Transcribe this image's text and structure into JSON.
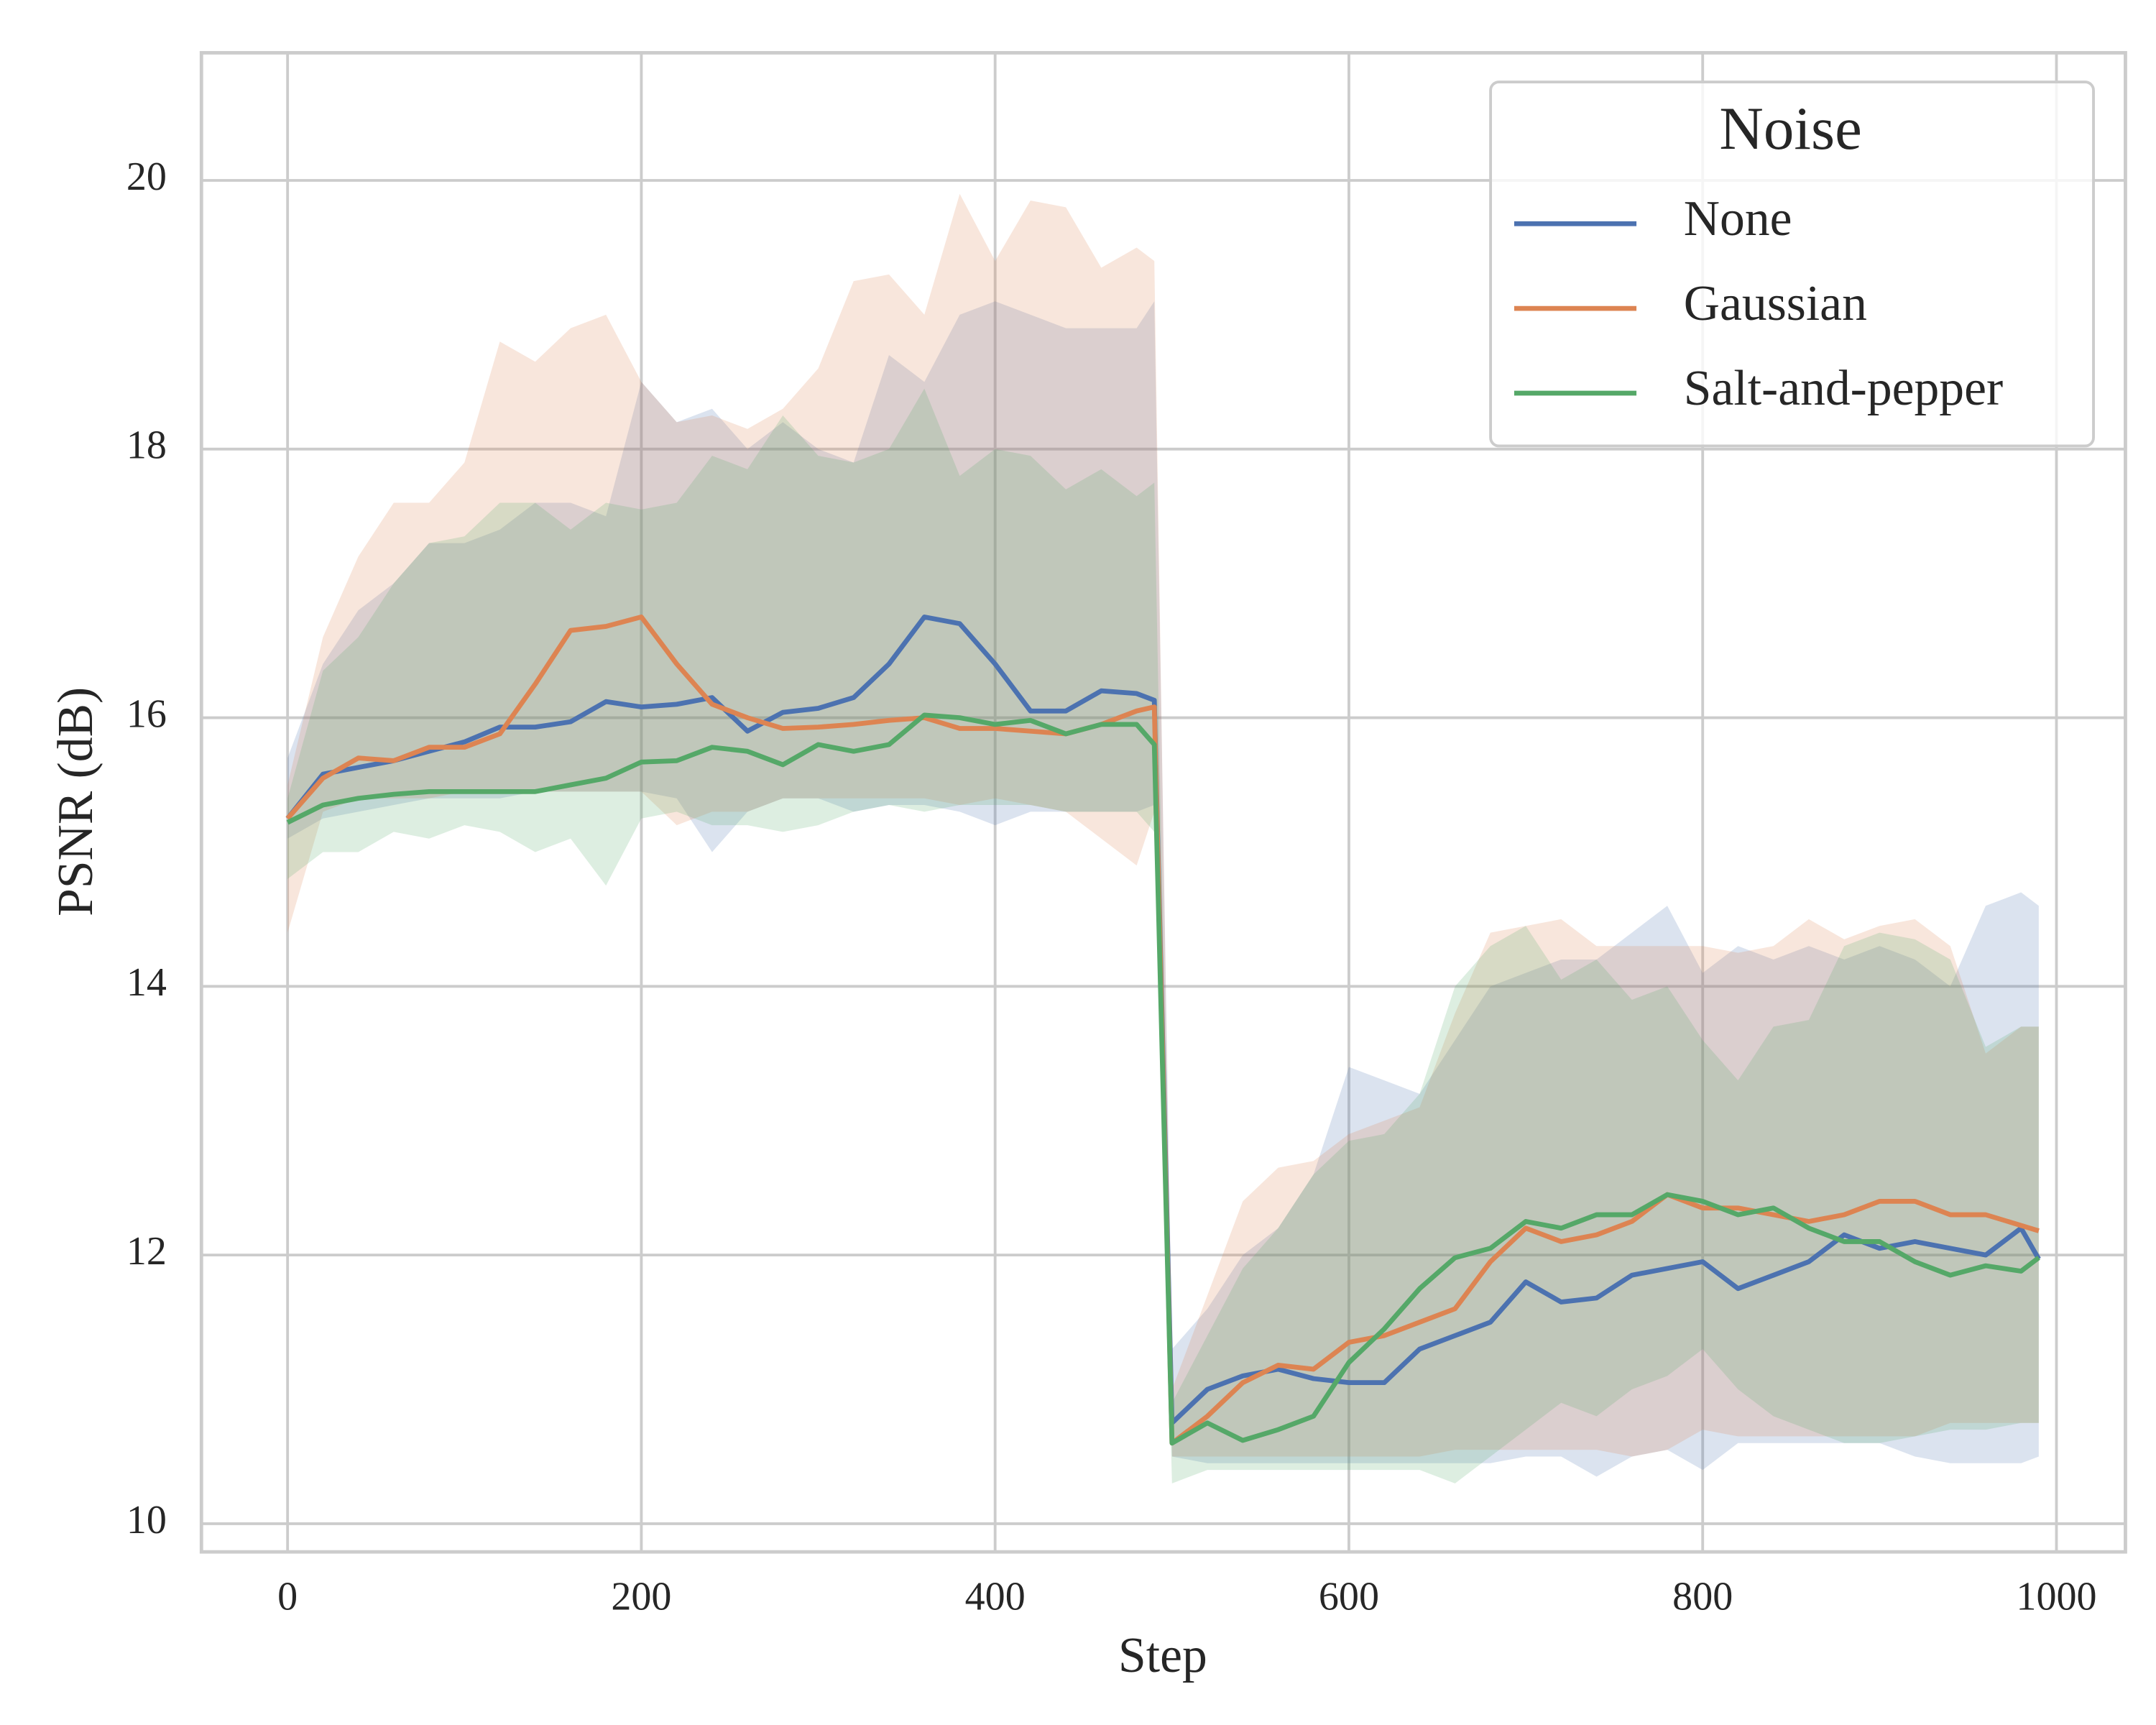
{
  "chart_data": {
    "type": "line",
    "x_label": "Step",
    "y_label": "PSNR (dB)",
    "x": [
      0,
      20,
      40,
      60,
      80,
      100,
      120,
      140,
      160,
      180,
      200,
      220,
      240,
      260,
      280,
      300,
      320,
      340,
      360,
      380,
      400,
      420,
      440,
      460,
      480,
      490,
      500,
      520,
      540,
      560,
      580,
      600,
      620,
      640,
      660,
      680,
      700,
      720,
      740,
      760,
      780,
      800,
      820,
      840,
      860,
      880,
      900,
      920,
      940,
      960,
      980,
      990
    ],
    "xlim": [
      -48.7,
      1039
    ],
    "ylim": [
      9.79,
      20.95
    ],
    "xticks": [
      0,
      200,
      400,
      600,
      800,
      1000
    ],
    "yticks": [
      10,
      12,
      14,
      16,
      18,
      20
    ],
    "grid": true,
    "legend_title": "Noise",
    "legend_position": "upper right",
    "series": [
      {
        "name": "None",
        "color": "#4c72b0",
        "values": [
          15.25,
          15.58,
          15.63,
          15.68,
          15.75,
          15.82,
          15.93,
          15.93,
          15.97,
          16.12,
          16.08,
          16.1,
          16.15,
          15.9,
          16.04,
          16.07,
          16.15,
          16.4,
          16.75,
          16.7,
          16.4,
          16.05,
          16.05,
          16.2,
          16.18,
          16.13,
          10.75,
          11.0,
          11.1,
          11.15,
          11.08,
          11.05,
          11.05,
          11.3,
          11.4,
          11.5,
          11.8,
          11.65,
          11.68,
          11.85,
          11.9,
          11.95,
          11.75,
          11.85,
          11.95,
          12.15,
          12.05,
          12.1,
          12.05,
          12.0,
          12.2,
          11.97
        ],
        "upper": [
          15.7,
          16.4,
          16.8,
          17.0,
          17.3,
          17.3,
          17.4,
          17.6,
          17.6,
          17.5,
          18.5,
          18.2,
          18.3,
          18.0,
          18.2,
          18.0,
          17.9,
          18.7,
          18.5,
          19.0,
          19.1,
          19.0,
          18.9,
          18.9,
          18.9,
          19.1,
          11.3,
          11.6,
          12.0,
          12.2,
          12.6,
          13.4,
          13.3,
          13.2,
          13.6,
          14.0,
          14.1,
          14.2,
          14.2,
          14.4,
          14.6,
          14.1,
          14.3,
          14.2,
          14.3,
          14.2,
          14.3,
          14.2,
          14.0,
          14.6,
          14.7,
          14.6
        ],
        "lower": [
          15.1,
          15.25,
          15.3,
          15.35,
          15.4,
          15.4,
          15.4,
          15.45,
          15.45,
          15.45,
          15.45,
          15.4,
          15.0,
          15.3,
          15.4,
          15.4,
          15.3,
          15.35,
          15.35,
          15.3,
          15.2,
          15.3,
          15.3,
          15.3,
          15.3,
          15.35,
          10.5,
          10.45,
          10.45,
          10.45,
          10.45,
          10.45,
          10.45,
          10.45,
          10.45,
          10.45,
          10.5,
          10.5,
          10.35,
          10.5,
          10.55,
          10.4,
          10.6,
          10.6,
          10.6,
          10.6,
          10.6,
          10.5,
          10.45,
          10.45,
          10.45,
          10.5
        ]
      },
      {
        "name": "Gaussian",
        "color": "#dd8452",
        "values": [
          15.25,
          15.55,
          15.7,
          15.68,
          15.78,
          15.78,
          15.88,
          16.25,
          16.65,
          16.68,
          16.75,
          16.4,
          16.1,
          16.0,
          15.92,
          15.93,
          15.95,
          15.98,
          16.0,
          15.92,
          15.92,
          15.9,
          15.88,
          15.95,
          16.05,
          16.08,
          10.6,
          10.8,
          11.05,
          11.18,
          11.15,
          11.35,
          11.4,
          11.5,
          11.6,
          11.95,
          12.2,
          12.1,
          12.15,
          12.25,
          12.45,
          12.35,
          12.35,
          12.3,
          12.25,
          12.3,
          12.4,
          12.4,
          12.3,
          12.3,
          12.22,
          12.18
        ],
        "upper": [
          15.5,
          16.6,
          17.2,
          17.6,
          17.6,
          17.9,
          18.8,
          18.65,
          18.9,
          19.0,
          18.5,
          18.2,
          18.25,
          18.15,
          18.3,
          18.6,
          19.25,
          19.3,
          19.0,
          19.9,
          19.4,
          19.85,
          19.8,
          19.35,
          19.5,
          19.4,
          11.0,
          11.7,
          12.4,
          12.65,
          12.7,
          12.9,
          13.0,
          13.1,
          13.8,
          14.4,
          14.45,
          14.5,
          14.3,
          14.3,
          14.3,
          14.3,
          14.25,
          14.3,
          14.5,
          14.35,
          14.45,
          14.5,
          14.3,
          13.5,
          13.7,
          13.7
        ],
        "lower": [
          14.4,
          15.3,
          15.4,
          15.4,
          15.4,
          15.45,
          15.45,
          15.45,
          15.45,
          15.45,
          15.45,
          15.2,
          15.3,
          15.3,
          15.4,
          15.4,
          15.4,
          15.4,
          15.4,
          15.35,
          15.4,
          15.35,
          15.3,
          15.1,
          14.9,
          15.3,
          10.5,
          10.5,
          10.5,
          10.5,
          10.5,
          10.5,
          10.5,
          10.5,
          10.55,
          10.55,
          10.55,
          10.55,
          10.55,
          10.5,
          10.55,
          10.7,
          10.65,
          10.65,
          10.65,
          10.65,
          10.65,
          10.65,
          10.75,
          10.75,
          10.75,
          10.75
        ]
      },
      {
        "name": "Salt-and-pepper",
        "color": "#55a868",
        "values": [
          15.22,
          15.35,
          15.4,
          15.43,
          15.45,
          15.45,
          15.45,
          15.45,
          15.5,
          15.55,
          15.67,
          15.68,
          15.78,
          15.75,
          15.65,
          15.8,
          15.75,
          15.8,
          16.02,
          16.0,
          15.95,
          15.98,
          15.88,
          15.95,
          15.95,
          15.8,
          10.6,
          10.75,
          10.62,
          10.7,
          10.8,
          11.2,
          11.45,
          11.75,
          11.98,
          12.05,
          12.25,
          12.2,
          12.3,
          12.3,
          12.45,
          12.4,
          12.3,
          12.35,
          12.2,
          12.1,
          12.1,
          11.95,
          11.85,
          11.92,
          11.88,
          11.98
        ],
        "upper": [
          15.4,
          16.35,
          16.6,
          17.0,
          17.3,
          17.35,
          17.6,
          17.6,
          17.4,
          17.6,
          17.55,
          17.6,
          17.95,
          17.85,
          18.25,
          17.95,
          17.9,
          18.0,
          18.45,
          17.8,
          18.0,
          17.95,
          17.7,
          17.85,
          17.65,
          17.75,
          10.9,
          11.4,
          11.9,
          12.2,
          12.6,
          12.85,
          12.9,
          13.2,
          14.0,
          14.3,
          14.45,
          14.05,
          14.2,
          13.9,
          14.0,
          13.6,
          13.3,
          13.7,
          13.75,
          14.3,
          14.4,
          14.35,
          14.2,
          13.55,
          13.7,
          13.7
        ],
        "lower": [
          14.8,
          15.0,
          15.0,
          15.15,
          15.1,
          15.2,
          15.15,
          15.0,
          15.1,
          14.75,
          15.25,
          15.3,
          15.2,
          15.2,
          15.15,
          15.2,
          15.3,
          15.35,
          15.3,
          15.35,
          15.35,
          15.35,
          15.3,
          15.3,
          15.3,
          15.15,
          10.3,
          10.4,
          10.4,
          10.4,
          10.4,
          10.4,
          10.4,
          10.4,
          10.3,
          10.5,
          10.7,
          10.9,
          10.8,
          11.0,
          11.1,
          11.3,
          11.0,
          10.8,
          10.7,
          10.6,
          10.6,
          10.65,
          10.7,
          10.7,
          10.75,
          10.75
        ]
      }
    ]
  }
}
